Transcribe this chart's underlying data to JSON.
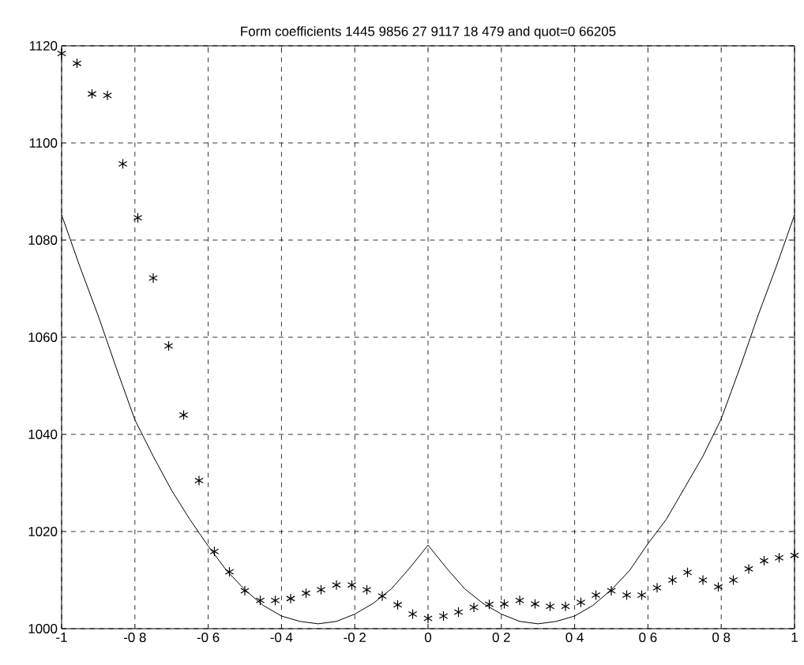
{
  "chart_data": {
    "type": "scatter",
    "title": "Form coefficients 1445 9856 27 9117 18 479 and quot=0 66205",
    "xlim": [
      -1,
      1
    ],
    "ylim": [
      1000,
      1120
    ],
    "xticks": [
      -1,
      {
        "value": -0.8,
        "label": "-0 8"
      },
      {
        "value": -0.6,
        "label": "-0 6"
      },
      {
        "value": -0.4,
        "label": "-0 4"
      },
      {
        "value": -0.2,
        "label": "-0 2"
      },
      0,
      {
        "value": 0.2,
        "label": "0 2"
      },
      {
        "value": 0.4,
        "label": "0 4"
      },
      {
        "value": 0.6,
        "label": "0 6"
      },
      {
        "value": 0.8,
        "label": "0 8"
      },
      1
    ],
    "yticks": [
      1000,
      1020,
      1040,
      1060,
      1080,
      1100,
      1120
    ],
    "grid": true,
    "series": [
      {
        "color": "#000000",
        "marker": "cross",
        "x": [
          -1,
          -0.958,
          -0.917,
          -0.875,
          -0.833,
          -0.792,
          -0.75,
          -0.708,
          -0.667,
          -0.625,
          -0.583,
          -0.542,
          -0.5,
          -0.458,
          -0.417,
          -0.375,
          -0.333,
          -0.292,
          -0.25,
          -0.208,
          -0.167,
          -0.125,
          -0.083,
          -0.042,
          0,
          0.042,
          0.083,
          0.125,
          0.167,
          0.208,
          0.25,
          0.292,
          0.333,
          0.375,
          0.417,
          0.458,
          0.5,
          0.542,
          0.583,
          0.625,
          0.667,
          0.708,
          0.75,
          0.792,
          0.833,
          0.875,
          0.917,
          0.958,
          1
        ],
        "values": [
          1118.4,
          1116.4,
          1110.1,
          1109.8,
          1095.7,
          1084.6,
          1072.2,
          1058.2,
          1044,
          1030.5,
          1015.9,
          1011.7,
          1007.8,
          1005.8,
          1005.8,
          1006.2,
          1007.3,
          1008,
          1009,
          1009,
          1008,
          1006.7,
          1004.9,
          1003,
          1002.1,
          1002.6,
          1003.4,
          1004.4,
          1005,
          1005.1,
          1005.8,
          1005.1,
          1004.6,
          1004.6,
          1005.4,
          1006.9,
          1007.8,
          1006.9,
          1006.9,
          1008.4,
          1010,
          1011.6,
          1010,
          1008.6,
          1010,
          1012.3,
          1014,
          1014.6,
          1015.1
        ]
      },
      {
        "type": "line",
        "color": "#000000",
        "marker": "none",
        "line_style": "solid",
        "x": [
          -1,
          -0.95,
          -0.9,
          -0.85,
          -0.8,
          -0.75,
          -0.7,
          -0.65,
          -0.6,
          -0.55,
          -0.5,
          -0.45,
          -0.4,
          -0.35,
          -0.3,
          -0.25,
          -0.2,
          -0.15,
          -0.1,
          -0.05,
          0,
          0.05,
          0.1,
          0.15,
          0.2,
          0.25,
          0.3,
          0.35,
          0.4,
          0.45,
          0.5,
          0.55,
          0.6,
          0.65,
          0.7,
          0.75,
          0.8,
          0.85,
          0.9,
          0.95,
          1
        ],
        "values": [
          1085.2,
          1074.5,
          1064.4,
          1053.5,
          1043,
          1035.5,
          1028.5,
          1022.5,
          1017,
          1012,
          1008,
          1004.8,
          1002.6,
          1001.5,
          1001,
          1001.5,
          1003,
          1005.2,
          1008.2,
          1012.5,
          1017.2,
          1012.5,
          1008.2,
          1005.2,
          1003,
          1001.5,
          1001,
          1001.5,
          1002.6,
          1004.8,
          1008,
          1012,
          1017.5,
          1022.5,
          1029,
          1035.5,
          1043.2,
          1053.5,
          1064.4,
          1074.5,
          1085.2
        ]
      }
    ]
  }
}
